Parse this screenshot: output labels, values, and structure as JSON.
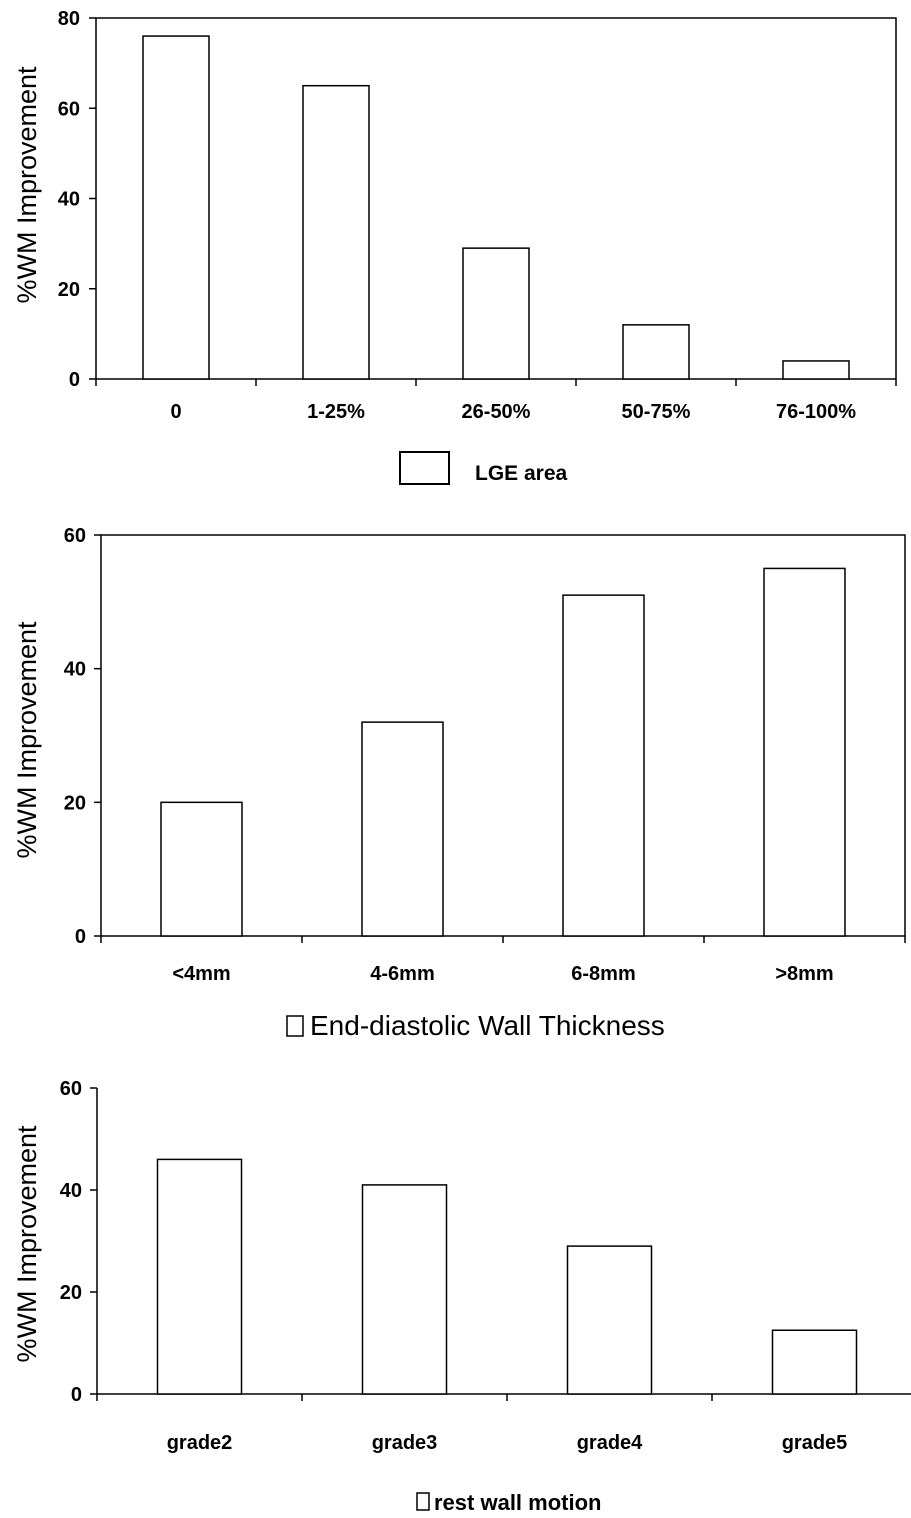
{
  "chart_data": [
    {
      "type": "bar",
      "ylabel": "%WM Improvement",
      "ylim": [
        0,
        80
      ],
      "yticks": [
        "0",
        "20",
        "40",
        "60",
        "80"
      ],
      "categories": [
        "0",
        "1-25%",
        "26-50%",
        "50-75%",
        "76-100%"
      ],
      "series": [
        {
          "name": "LGE area",
          "values": [
            76,
            65,
            29,
            12,
            4
          ]
        }
      ],
      "legend": {
        "label": "LGE area",
        "placement": "bottom"
      },
      "plot_frame": "box",
      "grid": false
    },
    {
      "type": "bar",
      "ylabel": "%WM Improvement",
      "ylim": [
        0,
        60
      ],
      "yticks": [
        "0",
        "20",
        "40",
        "60"
      ],
      "categories": [
        "<4mm",
        "4-6mm",
        "6-8mm",
        ">8mm"
      ],
      "series": [
        {
          "name": "End-diastolic Wall Thickness",
          "values": [
            20,
            32,
            51,
            55
          ]
        }
      ],
      "legend": {
        "label": "End-diastolic Wall Thickness",
        "placement": "bottom"
      },
      "plot_frame": "box",
      "grid": false
    },
    {
      "type": "bar",
      "ylabel": "%WM Improvement",
      "ylim": [
        0,
        60
      ],
      "yticks": [
        "0",
        "20",
        "40",
        "60"
      ],
      "categories": [
        "grade2",
        "grade3",
        "grade4",
        "grade5"
      ],
      "series": [
        {
          "name": "rest wall motion",
          "values": [
            46,
            41,
            29,
            12.5
          ]
        }
      ],
      "legend": {
        "label": "rest wall motion",
        "placement": "bottom"
      },
      "plot_frame": "axes",
      "grid": false
    }
  ]
}
